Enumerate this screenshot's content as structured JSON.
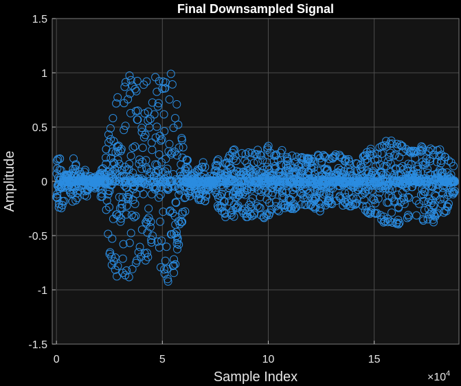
{
  "chart_data": {
    "type": "scatter",
    "title": "Final Downsampled Signal",
    "xlabel": "Sample Index",
    "ylabel": "Amplitude",
    "x_exponent_label": "×10",
    "x_exponent_power": "4",
    "xlim": [
      -2000,
      190000
    ],
    "ylim": [
      -1.5,
      1.5
    ],
    "x_tick_values": [
      0,
      50000,
      100000,
      150000
    ],
    "x_tick_labels": [
      "0",
      "5",
      "10",
      "15"
    ],
    "y_tick_values": [
      -1.5,
      -1,
      -0.5,
      0,
      0.5,
      1,
      1.5
    ],
    "y_tick_labels": [
      "-1.5",
      "-1",
      "-0.5",
      "0",
      "0.5",
      "1",
      "1.5"
    ],
    "grid": true,
    "marker": "circle",
    "series_color": "#2b8ce0",
    "background": "#141414",
    "figure_background": "#000000",
    "grid_color": "#4d4d4d",
    "envelope": {
      "x": [
        0,
        1000,
        3000,
        4000,
        6000,
        8000,
        10000,
        12000,
        14000,
        16000,
        20000,
        23000,
        26000,
        30000,
        33000,
        36000,
        40000,
        42000,
        44000,
        46000,
        48000,
        50000,
        52000,
        54000,
        56000,
        58000,
        60000,
        62000,
        64000,
        66000,
        68000,
        70000,
        72000,
        74000,
        76000,
        78000,
        80000,
        82000,
        84000,
        86000,
        88000,
        90000,
        92000,
        94000,
        96000,
        98000,
        100000,
        102000,
        104000,
        106000,
        108000,
        110000,
        112000,
        114000,
        116000,
        118000,
        120000,
        122000,
        124000,
        126000,
        128000,
        130000,
        132000,
        134000,
        136000,
        138000,
        140000,
        142000,
        144000,
        146000,
        148000,
        150000,
        152000,
        154000,
        156000,
        158000,
        160000,
        162000,
        164000,
        166000,
        168000,
        170000,
        172000,
        174000,
        176000,
        178000,
        180000,
        182000,
        184000,
        186000,
        188000
      ],
      "upper": [
        0.18,
        0.25,
        0.2,
        0.08,
        0.05,
        0.22,
        0.12,
        0.06,
        0.12,
        0.05,
        0.05,
        0.25,
        0.6,
        1.02,
        1.01,
        0.95,
        1.0,
        0.95,
        1.0,
        1.01,
        0.92,
        0.95,
        0.95,
        1.01,
        0.9,
        0.6,
        0.3,
        0.2,
        0.05,
        0.1,
        0.15,
        0.2,
        0.05,
        0.05,
        0.25,
        0.26,
        0.2,
        0.25,
        0.3,
        0.3,
        0.28,
        0.32,
        0.3,
        0.28,
        0.3,
        0.33,
        0.33,
        0.25,
        0.28,
        0.3,
        0.22,
        0.24,
        0.26,
        0.22,
        0.25,
        0.23,
        0.2,
        0.23,
        0.26,
        0.28,
        0.2,
        0.22,
        0.28,
        0.24,
        0.2,
        0.23,
        0.22,
        0.2,
        0.26,
        0.28,
        0.32,
        0.25,
        0.3,
        0.4,
        0.45,
        0.38,
        0.35,
        0.38,
        0.3,
        0.3,
        0.28,
        0.3,
        0.33,
        0.32,
        0.3,
        0.33,
        0.32,
        0.28,
        0.25,
        0.2,
        0.12
      ],
      "lower": [
        -0.15,
        -0.28,
        -0.25,
        -0.1,
        -0.08,
        -0.22,
        -0.15,
        -0.06,
        -0.18,
        -0.05,
        -0.08,
        -0.3,
        -0.85,
        -0.9,
        -0.88,
        -0.92,
        -0.88,
        -0.85,
        -0.88,
        -0.8,
        -0.82,
        -0.85,
        -0.92,
        -1.02,
        -0.8,
        -0.6,
        -0.35,
        -0.2,
        -0.06,
        -0.15,
        -0.2,
        -0.2,
        -0.06,
        -0.06,
        -0.25,
        -0.3,
        -0.35,
        -0.33,
        -0.38,
        -0.3,
        -0.32,
        -0.35,
        -0.38,
        -0.32,
        -0.3,
        -0.36,
        -0.32,
        -0.3,
        -0.28,
        -0.3,
        -0.24,
        -0.27,
        -0.26,
        -0.24,
        -0.25,
        -0.25,
        -0.22,
        -0.26,
        -0.3,
        -0.28,
        -0.2,
        -0.22,
        -0.3,
        -0.25,
        -0.22,
        -0.25,
        -0.24,
        -0.22,
        -0.28,
        -0.3,
        -0.32,
        -0.3,
        -0.34,
        -0.38,
        -0.38,
        -0.4,
        -0.42,
        -0.4,
        -0.38,
        -0.35,
        -0.32,
        -0.34,
        -0.38,
        -0.36,
        -0.35,
        -0.38,
        -0.35,
        -0.3,
        -0.28,
        -0.2,
        -0.1
      ]
    }
  }
}
